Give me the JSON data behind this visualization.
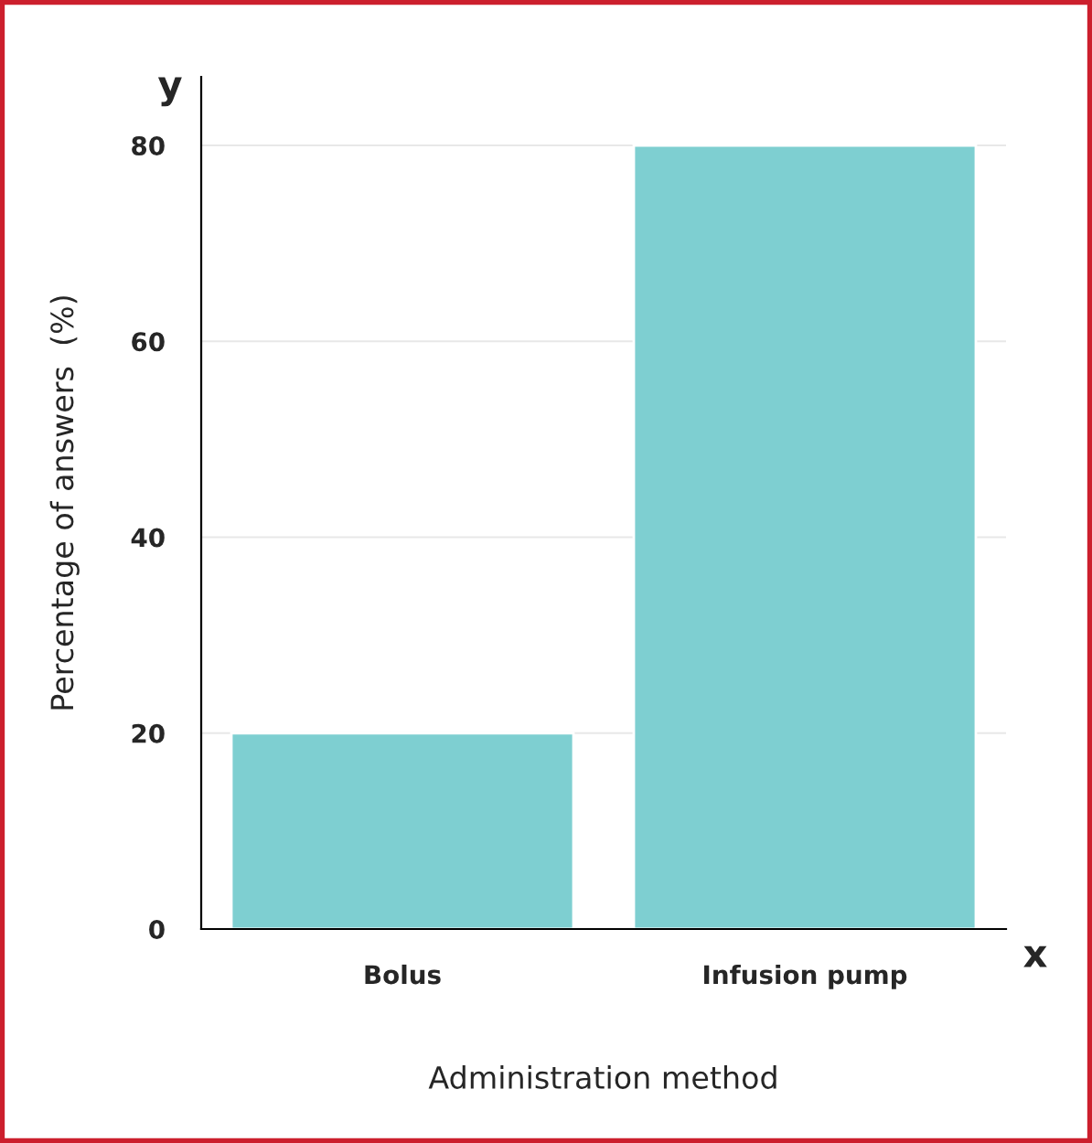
{
  "chart_data": {
    "type": "bar",
    "categories": [
      "Bolus",
      "Infusion pump"
    ],
    "values": [
      20,
      80
    ],
    "color": "#7ecfd1",
    "xlabel": "Administration method",
    "ylabel": "Percentage of answers  (%)",
    "ylim": [
      0,
      87
    ],
    "yticks": [
      0,
      20,
      40,
      60,
      80
    ],
    "grid": "y",
    "annotations": [
      "y",
      "x"
    ]
  }
}
